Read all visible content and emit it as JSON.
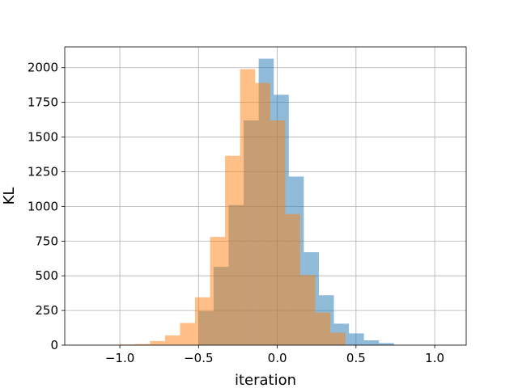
{
  "chart_data": {
    "type": "bar",
    "title": "",
    "xlabel": "iteration",
    "ylabel": "KL",
    "xlim": [
      -1.35,
      1.2
    ],
    "ylim": [
      0,
      2150
    ],
    "xticks": [
      -1.0,
      -0.5,
      0.0,
      0.5,
      1.0
    ],
    "xtick_labels": [
      "−1.0",
      "−0.5",
      "0.0",
      "0.5",
      "1.0"
    ],
    "yticks": [
      0,
      250,
      500,
      750,
      1000,
      1250,
      1500,
      1750,
      2000
    ],
    "ytick_labels": [
      "0",
      "250",
      "500",
      "750",
      "1000",
      "1250",
      "1500",
      "1750",
      "2000"
    ],
    "grid": true,
    "bin_width": 0.0955,
    "series": [
      {
        "color": "#1f77b4",
        "alpha": 0.5,
        "bin_starts": [
          -0.5,
          -0.4045,
          -0.309,
          -0.2135,
          -0.118,
          -0.0225,
          0.073,
          0.1685,
          0.264,
          0.3595,
          0.455,
          0.5505,
          0.646
        ],
        "values": [
          245,
          565,
          1010,
          1620,
          2065,
          1805,
          1215,
          670,
          360,
          155,
          85,
          35,
          15
        ]
      },
      {
        "color": "#ff7f0e",
        "alpha": 0.5,
        "bin_starts": [
          -1.0,
          -0.9045,
          -0.809,
          -0.7135,
          -0.618,
          -0.5225,
          -0.427,
          -0.3315,
          -0.236,
          -0.1405,
          -0.045,
          0.0505,
          0.146,
          0.2415,
          0.337
        ],
        "values": [
          5,
          8,
          30,
          70,
          160,
          345,
          780,
          1365,
          1990,
          1890,
          1620,
          945,
          505,
          235,
          90
        ]
      }
    ]
  }
}
